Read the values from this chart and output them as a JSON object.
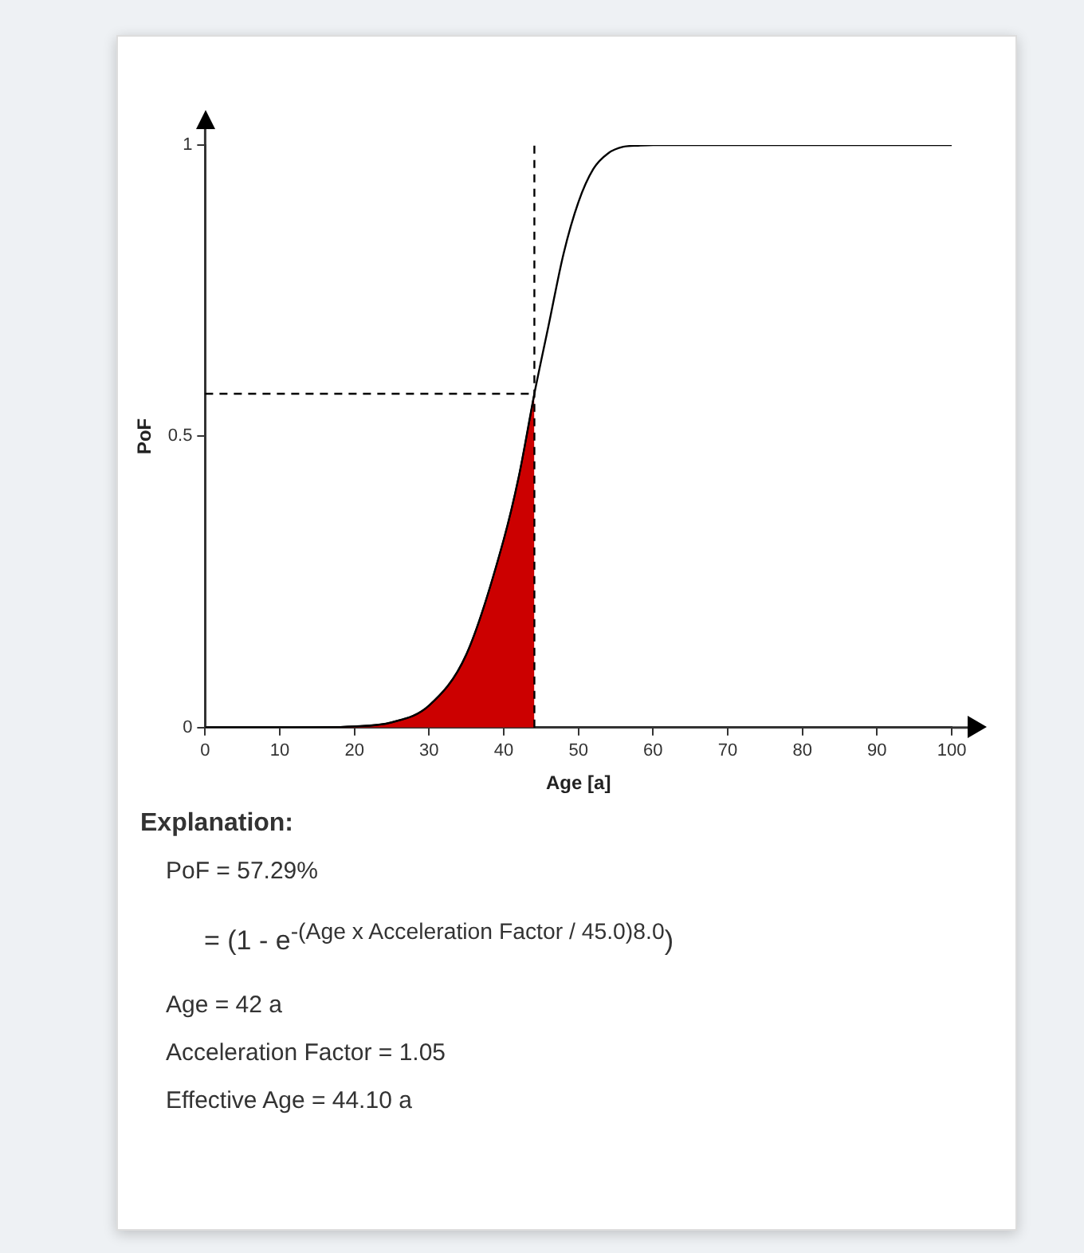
{
  "chart_data": {
    "type": "line",
    "xlabel": "Age [a]",
    "ylabel": "PoF",
    "xlim": [
      0,
      100
    ],
    "xticks": [
      0,
      10,
      20,
      30,
      40,
      50,
      60,
      70,
      80,
      90,
      100
    ],
    "ylim": [
      0,
      1
    ],
    "yticks": [
      0,
      0.5,
      1
    ],
    "grid": false,
    "legend": false,
    "marker": "none",
    "series": [
      {
        "color": "#000000",
        "x": [
          0,
          10,
          20,
          25,
          30,
          35,
          40,
          42,
          44.1,
          46,
          48,
          50,
          52,
          54,
          56,
          58,
          60,
          70,
          80,
          90,
          100
        ],
        "values": [
          0,
          0,
          0.002,
          0.009,
          0.038,
          0.126,
          0.323,
          0.43,
          0.573,
          0.69,
          0.813,
          0.902,
          0.959,
          0.986,
          0.997,
          0.999,
          1,
          1,
          1,
          1,
          1
        ]
      },
      {
        "type": "area",
        "color": "#cc0000",
        "x": [
          0,
          10,
          20,
          25,
          30,
          35,
          40,
          42,
          44.1
        ],
        "values": [
          0,
          0,
          0.002,
          0.009,
          0.038,
          0.126,
          0.323,
          0.43,
          0.573
        ]
      }
    ],
    "ref_lines": [
      {
        "axis": "x",
        "value": 44.1,
        "line_style": "dashed",
        "color": "#000000"
      },
      {
        "axis": "y",
        "value": 0.573,
        "line_style": "dashed",
        "color": "#000000"
      }
    ],
    "annotations": [
      "Explanation:",
      "PoF = 57.29%",
      "= (1 - e$^{-(Age x Acceleration Factor / 45.0)}$$^{8.0}$)",
      "Age = 42 a",
      "Acceleration Factor = 1.05",
      "Effective Age = 44.10 a"
    ]
  }
}
